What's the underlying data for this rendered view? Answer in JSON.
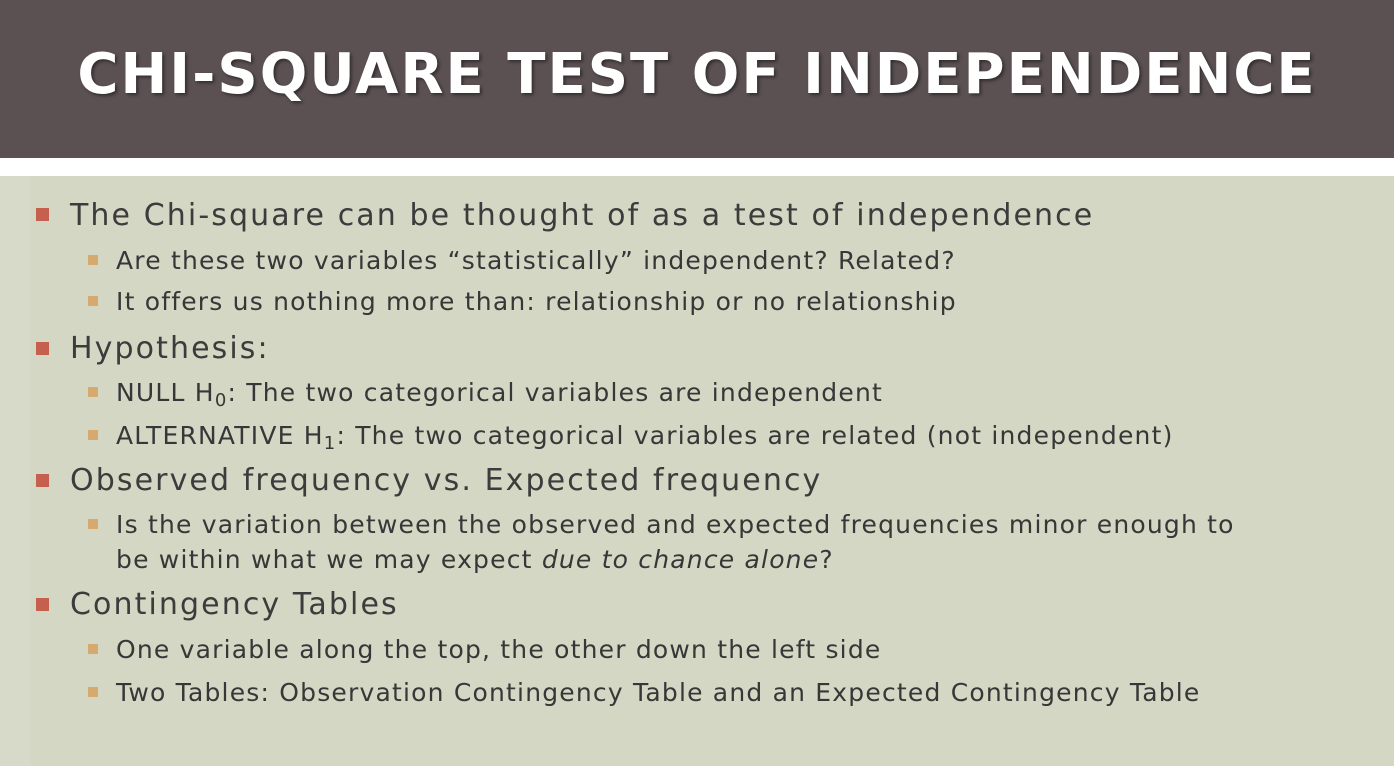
{
  "slide": {
    "title": "CHI-SQUARE TEST OF INDEPENDENCE",
    "bullets": [
      {
        "text": "The Chi-square can be thought of as a test of independence",
        "sub": [
          "Are these two variables “statistically” independent? Related?",
          "It offers us nothing more than: relationship or no relationship"
        ]
      },
      {
        "text": "Hypothesis:",
        "sub": [
          {
            "prefix": "NULL H",
            "subscript": "0",
            "suffix": ": The two categorical variables are independent"
          },
          {
            "prefix": "ALTERNATIVE H",
            "subscript": "1",
            "suffix": ": The two categorical variables are related (not independent)"
          }
        ]
      },
      {
        "text": "Observed frequency vs. Expected frequency",
        "sub": [
          {
            "line1": "Is the variation between the observed and expected frequencies minor enough to",
            "line2_before": "be within what we may expect ",
            "line2_italic": "due to chance alone",
            "line2_after": "?"
          }
        ]
      },
      {
        "text": "Contingency Tables",
        "sub": [
          "One variable along the top, the other down the left side",
          "Two Tables: Observation Contingency Table and an Expected Contingency Table"
        ]
      }
    ]
  },
  "colors": {
    "title_bar": "#5b5153",
    "content_bg": "#d3d7c4",
    "bullet_level1": "#c5604f",
    "bullet_level2": "#d6aa6e",
    "text": "#3d3b3b"
  }
}
